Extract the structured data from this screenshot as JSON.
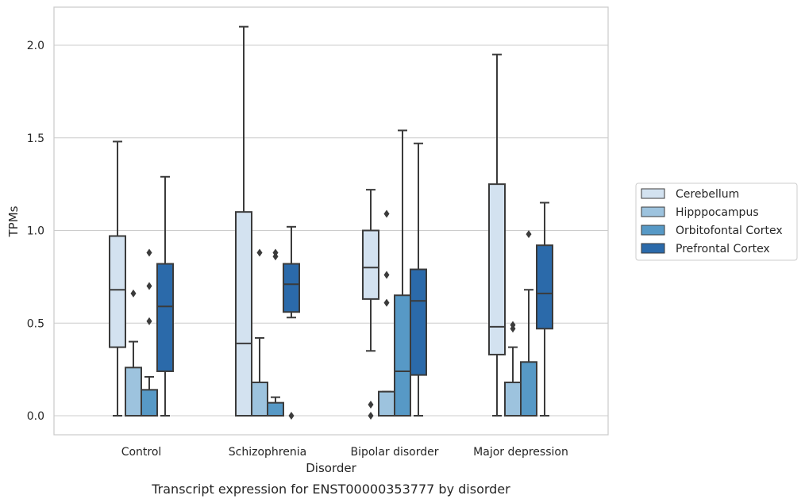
{
  "chart_data": {
    "type": "box",
    "caption": "Transcript expression for ENST00000353777 by disorder",
    "xlabel": "Disorder",
    "ylabel": "TPMs",
    "ylim": [
      -0.1,
      2.22
    ],
    "yticks": [
      0.0,
      0.5,
      1.0,
      1.5,
      2.0
    ],
    "ytick_labels": [
      "0.0",
      "0.5",
      "1.0",
      "1.5",
      "2.0"
    ],
    "grid": "horizontal",
    "legend_position": "right",
    "categories": [
      "Control",
      "Schizophrenia",
      "Bipolar disorder",
      "Major depression"
    ],
    "series": [
      {
        "name": "Cerebellum",
        "color": "#d3e2f0",
        "boxes": [
          {
            "whislo": 0.0,
            "q1": 0.37,
            "med": 0.68,
            "q3": 0.97,
            "whishi": 1.48,
            "fliers": []
          },
          {
            "whislo": 0.0,
            "q1": 0.0,
            "med": 0.39,
            "q3": 1.1,
            "whishi": 2.1,
            "fliers": []
          },
          {
            "whislo": 0.35,
            "q1": 0.63,
            "med": 0.8,
            "q3": 1.0,
            "whishi": 1.22,
            "fliers": [
              0.06,
              0.0
            ]
          },
          {
            "whislo": 0.0,
            "q1": 0.33,
            "med": 0.48,
            "q3": 1.25,
            "whishi": 1.95,
            "fliers": []
          }
        ]
      },
      {
        "name": "Hipppocampus",
        "color": "#9dc3de",
        "boxes": [
          {
            "whislo": 0.0,
            "q1": 0.0,
            "med": 0.0,
            "q3": 0.26,
            "whishi": 0.4,
            "fliers": [
              0.66
            ]
          },
          {
            "whislo": 0.0,
            "q1": 0.0,
            "med": 0.0,
            "q3": 0.18,
            "whishi": 0.42,
            "fliers": [
              0.88
            ]
          },
          {
            "whislo": 0.0,
            "q1": 0.0,
            "med": 0.0,
            "q3": 0.13,
            "whishi": 0.13,
            "fliers": [
              1.09,
              0.76,
              0.61
            ]
          },
          {
            "whislo": 0.0,
            "q1": 0.0,
            "med": 0.0,
            "q3": 0.18,
            "whishi": 0.37,
            "fliers": [
              0.49,
              0.47
            ]
          }
        ]
      },
      {
        "name": "Orbitofontal Cortex",
        "color": "#5799c6",
        "boxes": [
          {
            "whislo": 0.0,
            "q1": 0.0,
            "med": 0.0,
            "q3": 0.14,
            "whishi": 0.21,
            "fliers": [
              0.88,
              0.7,
              0.51
            ]
          },
          {
            "whislo": 0.0,
            "q1": 0.0,
            "med": 0.0,
            "q3": 0.07,
            "whishi": 0.1,
            "fliers": [
              0.88,
              0.86
            ]
          },
          {
            "whislo": 0.0,
            "q1": 0.0,
            "med": 0.24,
            "q3": 0.65,
            "whishi": 1.54,
            "fliers": []
          },
          {
            "whislo": 0.0,
            "q1": 0.0,
            "med": 0.0,
            "q3": 0.29,
            "whishi": 0.68,
            "fliers": [
              0.98
            ]
          }
        ]
      },
      {
        "name": "Prefrontal Cortex",
        "color": "#2b6aaa",
        "boxes": [
          {
            "whislo": 0.0,
            "q1": 0.24,
            "med": 0.59,
            "q3": 0.82,
            "whishi": 1.29,
            "fliers": []
          },
          {
            "whislo": 0.53,
            "q1": 0.56,
            "med": 0.71,
            "q3": 0.82,
            "whishi": 1.02,
            "fliers": [
              0.0
            ]
          },
          {
            "whislo": 0.0,
            "q1": 0.22,
            "med": 0.62,
            "q3": 0.79,
            "whishi": 1.47,
            "fliers": []
          },
          {
            "whislo": 0.0,
            "q1": 0.47,
            "med": 0.66,
            "q3": 0.92,
            "whishi": 1.15,
            "fliers": []
          }
        ]
      }
    ]
  }
}
